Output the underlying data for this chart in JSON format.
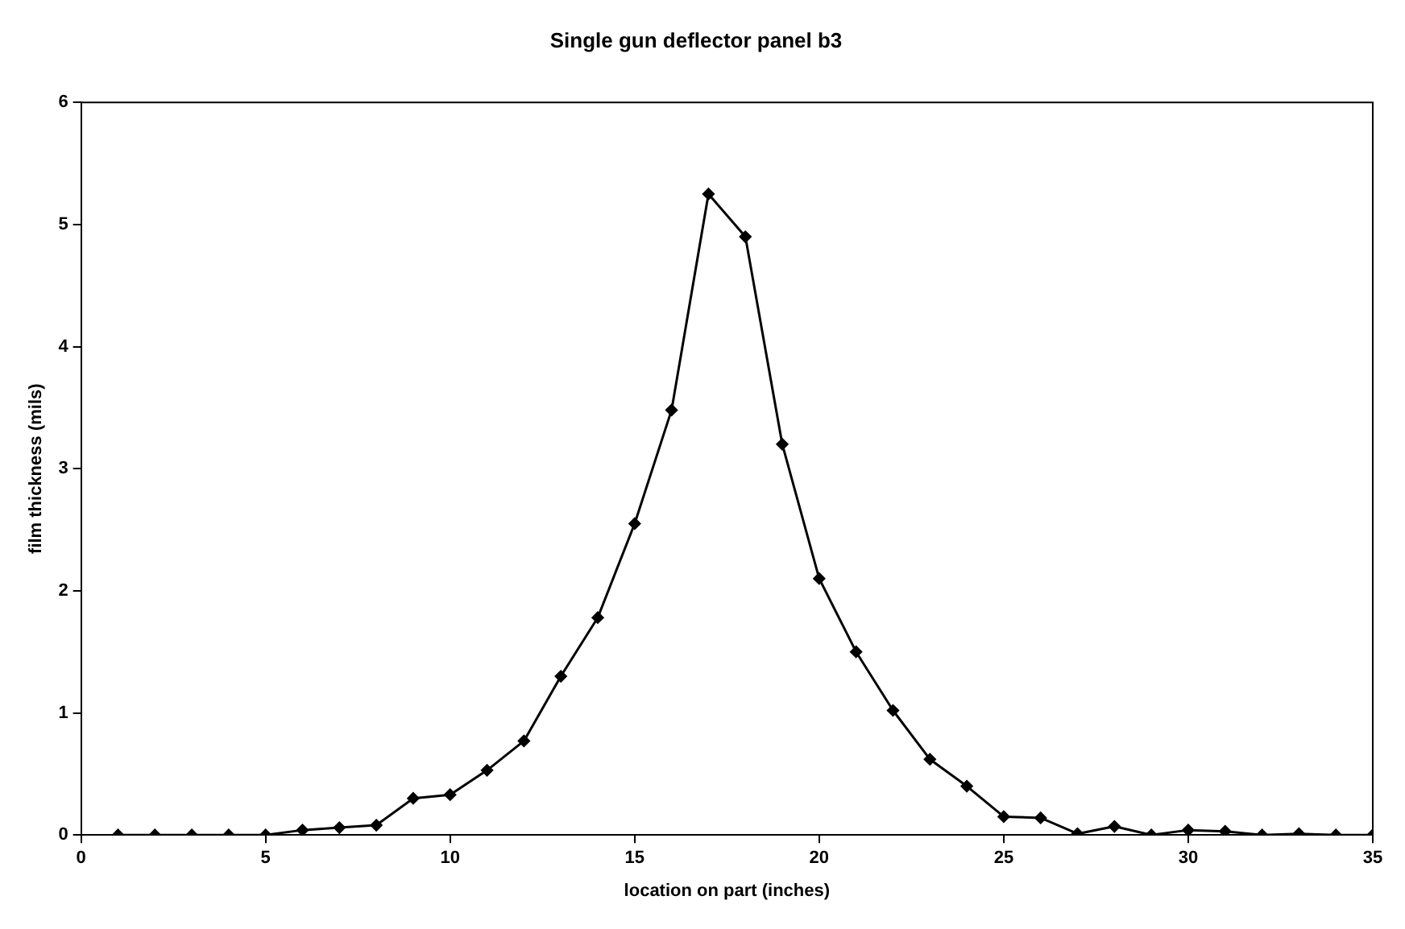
{
  "chart_data": {
    "type": "line",
    "title": "Single gun deflector panel b3",
    "xlabel": "location on part (inches)",
    "ylabel": "film thickness (mils)",
    "x": [
      1,
      2,
      3,
      4,
      5,
      6,
      7,
      8,
      9,
      10,
      11,
      12,
      13,
      14,
      15,
      16,
      17,
      18,
      19,
      20,
      21,
      22,
      23,
      24,
      25,
      26,
      27,
      28,
      29,
      30,
      31,
      32,
      33,
      34,
      35
    ],
    "series": [
      {
        "color": "#000000",
        "values": [
          0,
          0,
          0,
          0,
          0,
          0.04,
          0.06,
          0.08,
          0.3,
          0.33,
          0.53,
          0.77,
          1.3,
          1.78,
          2.55,
          3.48,
          5.25,
          4.9,
          3.2,
          2.1,
          1.5,
          1.02,
          0.62,
          0.4,
          0.15,
          0.14,
          0.01,
          0.07,
          0,
          0.04,
          0.03,
          0,
          0.01,
          0,
          0
        ]
      }
    ],
    "xlim": [
      0,
      35
    ],
    "xticks": [
      0,
      5,
      10,
      15,
      20,
      25,
      30,
      35
    ],
    "ylim": [
      0,
      6
    ],
    "yticks": [
      0,
      1,
      2,
      3,
      4,
      5,
      6
    ],
    "grid": false,
    "legend": false,
    "marker": "diamond",
    "line_style": "solid"
  }
}
